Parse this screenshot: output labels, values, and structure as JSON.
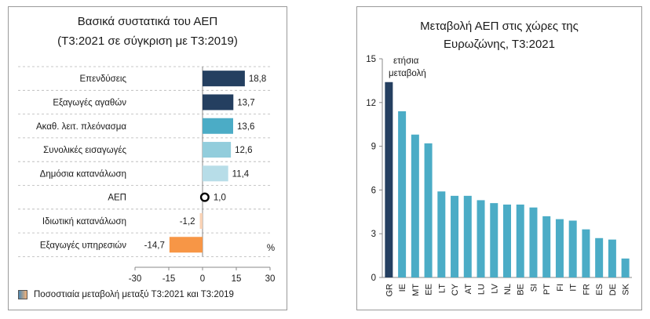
{
  "chart_data": [
    {
      "type": "bar",
      "orientation": "horizontal",
      "title": "Βασικά συστατικά του ΑΕΠ",
      "subtitle": "(Τ3:2021 σε σύγκριση με Τ3:2019)",
      "categories": [
        "Επενδύσεις",
        "Εξαγωγές αγαθών",
        "Ακαθ. λειτ. πλεόνασμα",
        "Συνολικές εισαγωγές",
        "Δημόσια κατανάλωση",
        "ΑΕΠ",
        "Ιδιωτική κατανάλωση",
        "Εξαγωγές υπηρεσιών"
      ],
      "values": [
        18.8,
        13.7,
        13.6,
        12.6,
        11.4,
        1.0,
        -1.2,
        -14.7
      ],
      "value_labels": [
        "18,8",
        "13,7",
        "13,6",
        "12,6",
        "11,4",
        "1,0",
        "-1,2",
        "-14,7"
      ],
      "marker_category": "ΑΕΠ",
      "xlim": [
        -30,
        30
      ],
      "xticks": [
        -30,
        -15,
        0,
        15,
        30
      ],
      "unit_label": "%",
      "legend": "Ποσοστιαία μεταβολή μεταξύ Τ3:2021 και Τ3:2019",
      "colors": [
        "#243f60",
        "#243f60",
        "#4bacc6",
        "#92cddc",
        "#b7dde8",
        "#000000",
        "#f9d2b5",
        "#f79646"
      ],
      "grid": "horizontal dashed"
    },
    {
      "type": "bar",
      "title": "Μεταβολή ΑΕΠ στις χώρες της Ευρωζώνης, Τ3:2021",
      "title_lines": [
        "Μεταβολή ΑΕΠ στις χώρες της",
        "Ευρωζώνης, Τ3:2021"
      ],
      "annotation": [
        "ετήσια",
        "μεταβολή"
      ],
      "categories": [
        "GR",
        "IE",
        "MT",
        "EE",
        "LT",
        "CY",
        "AT",
        "LU",
        "LV",
        "NL",
        "BE",
        "SI",
        "PT",
        "FI",
        "IT",
        "FR",
        "ES",
        "DE",
        "SK"
      ],
      "values": [
        13.4,
        11.4,
        9.8,
        9.2,
        5.9,
        5.6,
        5.6,
        5.3,
        5.1,
        5.0,
        5.0,
        4.8,
        4.2,
        4.0,
        3.9,
        3.3,
        2.7,
        2.6,
        1.3
      ],
      "ylim": [
        0,
        15
      ],
      "yticks": [
        0,
        3,
        6,
        9,
        12,
        15
      ],
      "colors": {
        "highlight": "#243f60",
        "default": "#4bacc6"
      },
      "grid": "none"
    }
  ]
}
